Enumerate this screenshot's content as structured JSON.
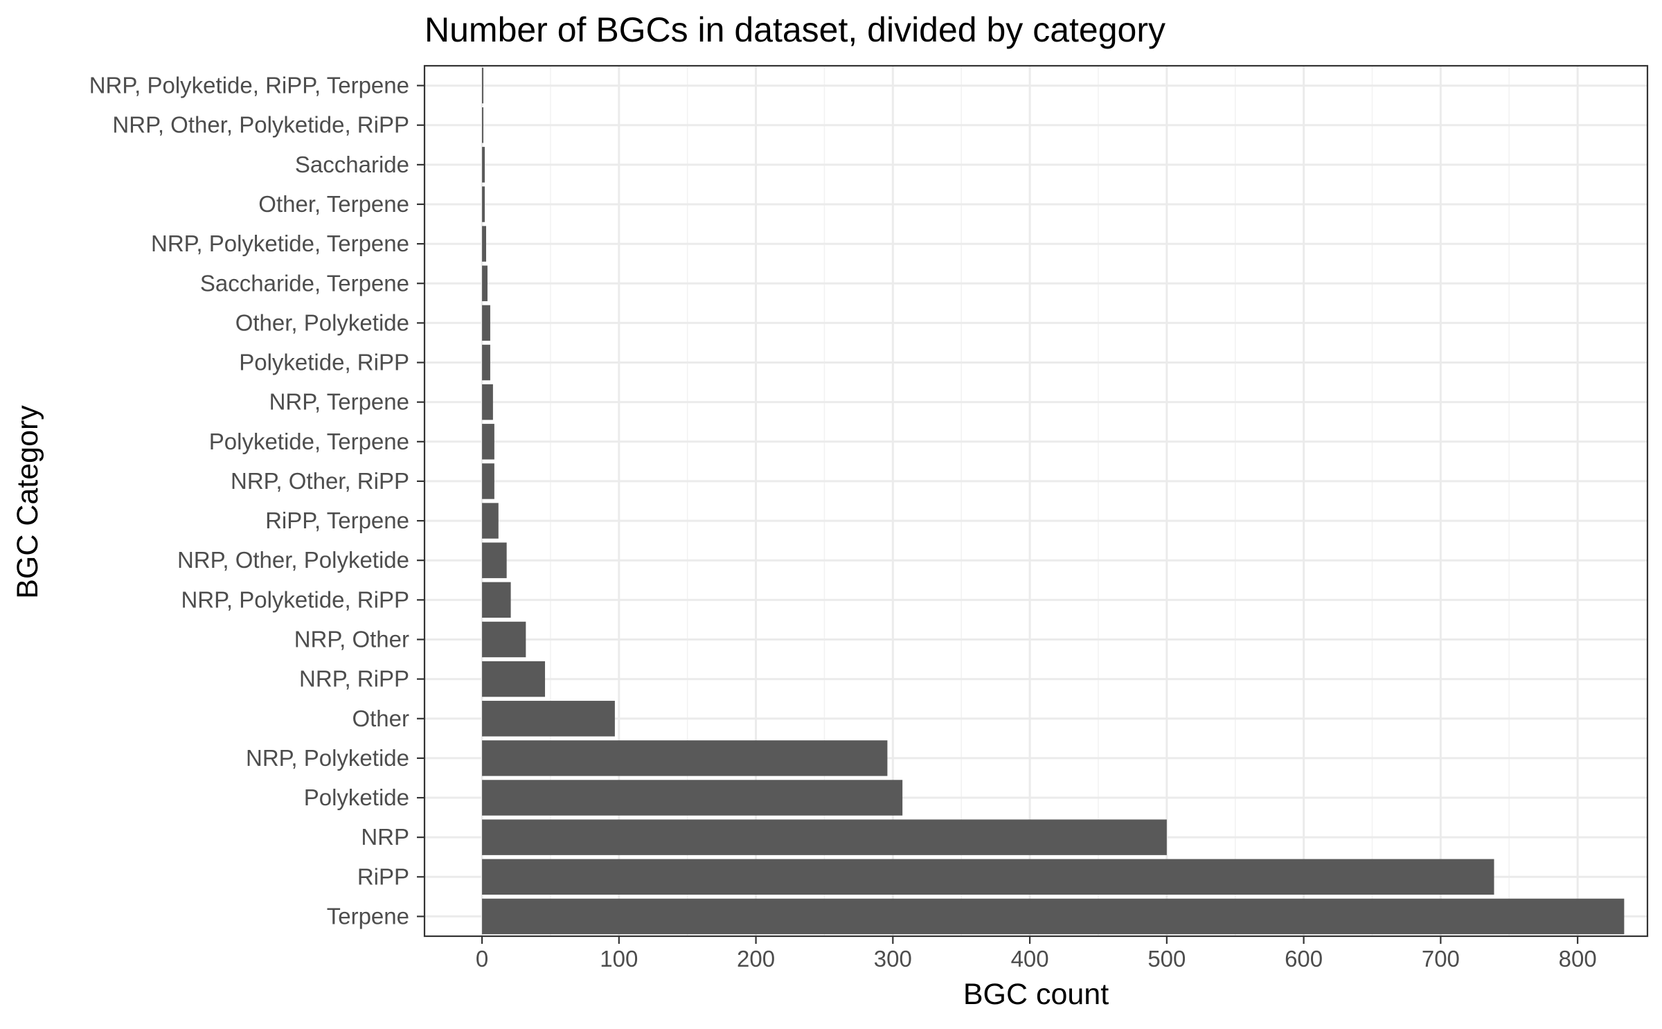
{
  "chart_data": {
    "type": "bar",
    "orientation": "horizontal",
    "title": "Number of BGCs in dataset, divided by category",
    "xlabel": "BGC count",
    "ylabel": "BGC Category",
    "xlim": [
      -42,
      851
    ],
    "x_ticks": [
      0,
      100,
      200,
      300,
      400,
      500,
      600,
      700,
      800
    ],
    "grid": true,
    "legend": "none",
    "bar_color": "#595959",
    "categories": [
      "Terpene",
      "RiPP",
      "NRP",
      "Polyketide",
      "NRP, Polyketide",
      "Other",
      "NRP, RiPP",
      "NRP, Other",
      "NRP, Polyketide, RiPP",
      "NRP, Other, Polyketide",
      "RiPP, Terpene",
      "NRP, Other, RiPP",
      "Polyketide, Terpene",
      "NRP, Terpene",
      "Polyketide, RiPP",
      "Other, Polyketide",
      "Saccharide, Terpene",
      "NRP, Polyketide, Terpene",
      "Other, Terpene",
      "Saccharide",
      "NRP, Other, Polyketide, RiPP",
      "NRP, Polyketide, RiPP, Terpene"
    ],
    "values": [
      834,
      739,
      500,
      307,
      296,
      97,
      46,
      32,
      21,
      18,
      12,
      9,
      9,
      8,
      6,
      6,
      4,
      3,
      2,
      2,
      1,
      1
    ]
  }
}
